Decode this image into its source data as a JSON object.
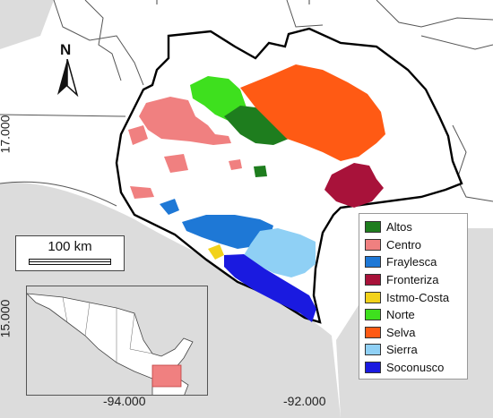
{
  "map": {
    "north_label": "N",
    "scale_label": "100 km",
    "x_ticks": [
      "-94.000",
      "-92.000"
    ],
    "y_ticks": [
      "17.000",
      "15.000"
    ],
    "legend": [
      {
        "label": "Altos",
        "color": "#1e7d1e"
      },
      {
        "label": "Centro",
        "color": "#f08080"
      },
      {
        "label": "Fraylesca",
        "color": "#1e78d6"
      },
      {
        "label": "Fronteriza",
        "color": "#a8123a"
      },
      {
        "label": "Istmo-Costa",
        "color": "#f2d21b"
      },
      {
        "label": "Norte",
        "color": "#3ee01e"
      },
      {
        "label": "Selva",
        "color": "#ff5a14"
      },
      {
        "label": "Sierra",
        "color": "#8fd0f5"
      },
      {
        "label": "Soconusco",
        "color": "#1a1ae0"
      }
    ],
    "colors": {
      "sea": "#dcdcdc",
      "land": "#ffffff",
      "boundary": "#000000",
      "inset_highlight": "#f08080"
    }
  }
}
